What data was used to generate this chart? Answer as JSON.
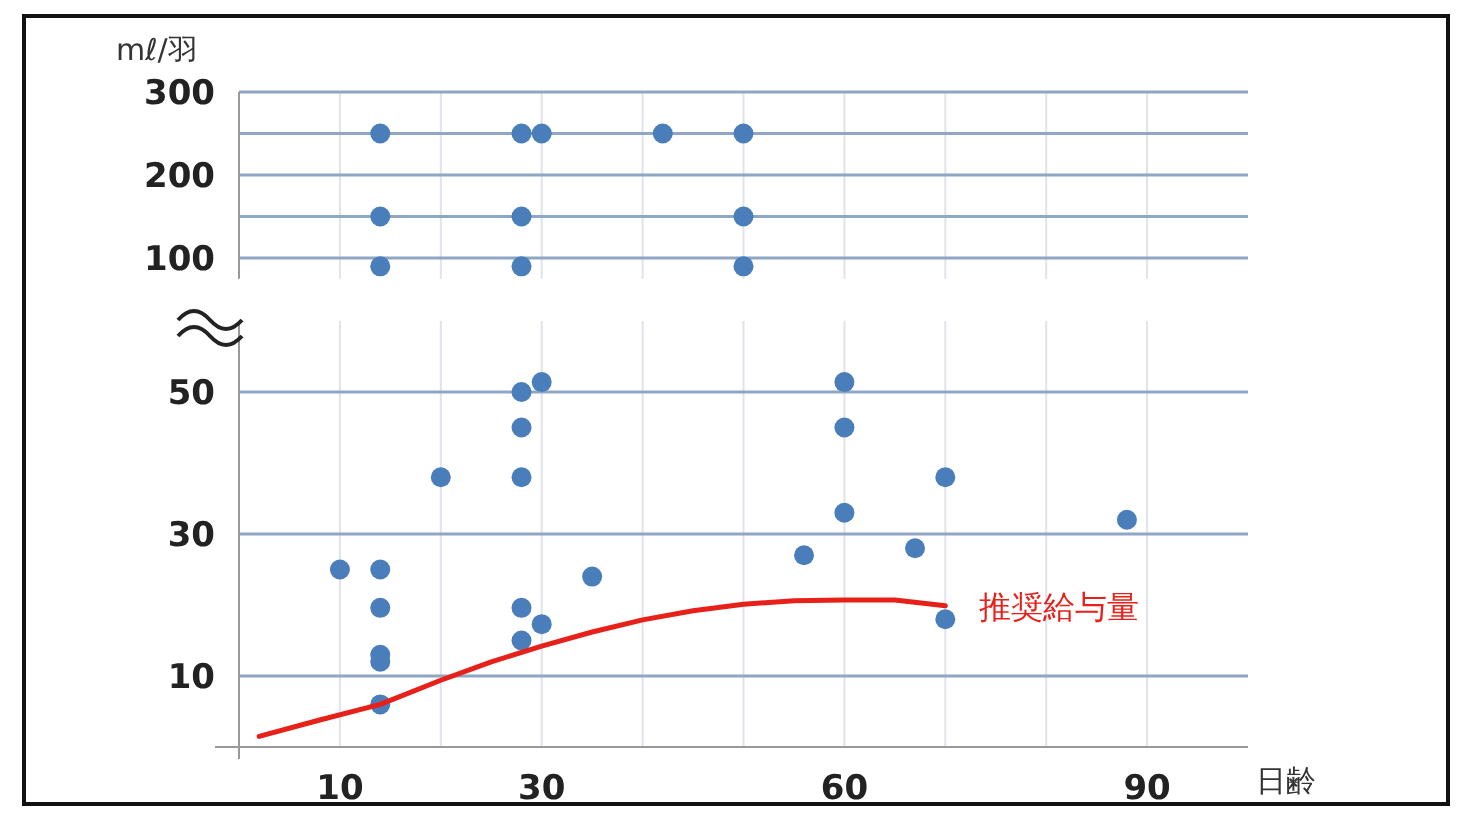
{
  "chart_data": [
    {
      "type": "scatter",
      "ylabel": "mℓ/羽",
      "xlim": [
        0,
        100
      ],
      "xticks": [
        10,
        {
          "value": 20,
          "label": null
        },
        30,
        {
          "value": 40,
          "label": null
        },
        {
          "value": 50,
          "label": null
        },
        60,
        {
          "value": 70,
          "label": null
        },
        {
          "value": 80,
          "label": null
        },
        90
      ],
      "ylim": [
        75,
        300
      ],
      "yticks": [
        100,
        {
          "value": 150,
          "label": null
        },
        200,
        {
          "value": 250,
          "label": null
        },
        300
      ],
      "tick_labels": "y",
      "grid": true,
      "series": [
        {
          "color": "#4a7ebb",
          "marker": "circle",
          "x": [
            14,
            28,
            30,
            42,
            50,
            14,
            28,
            50,
            14,
            28,
            50
          ],
          "values": [
            250,
            250,
            250,
            250,
            250,
            150,
            150,
            150,
            90,
            90,
            90
          ]
        }
      ]
    },
    {
      "type": "scatter",
      "xlabel": "日齢",
      "xlim": [
        0,
        100
      ],
      "xticks": [
        10,
        {
          "value": 20,
          "label": null
        },
        30,
        {
          "value": 40,
          "label": null
        },
        {
          "value": 50,
          "label": null
        },
        60,
        {
          "value": 70,
          "label": null
        },
        {
          "value": 80,
          "label": null
        },
        90
      ],
      "ylim": [
        0,
        60
      ],
      "yticks": [
        10,
        30,
        50
      ],
      "grid": true,
      "series": [
        {
          "color": "#4a7ebb",
          "marker": "circle",
          "x": [
            28,
            30,
            28,
            20,
            28,
            10,
            14,
            14,
            28,
            14,
            14,
            30,
            28,
            14,
            35,
            60,
            60,
            70,
            60,
            56,
            67,
            88,
            70
          ],
          "values": [
            50,
            51.4,
            45,
            38,
            38,
            25,
            25,
            19.6,
            19.6,
            13,
            12,
            17.3,
            15,
            6,
            24,
            51.4,
            45,
            38,
            33,
            27,
            28,
            32,
            18
          ]
        },
        {
          "type": "line",
          "name": "推奨給与量",
          "color": "#e8201a",
          "marker": "none",
          "line_style": "solid",
          "x": [
            2,
            8,
            14,
            20,
            25,
            30,
            35,
            40,
            45,
            50,
            55,
            60,
            65,
            70
          ],
          "values": [
            1.5,
            3.8,
            6,
            9.4,
            12,
            14.2,
            16.2,
            17.9,
            19.2,
            20.1,
            20.6,
            20.7,
            20.7,
            19.9
          ]
        }
      ]
    }
  ]
}
